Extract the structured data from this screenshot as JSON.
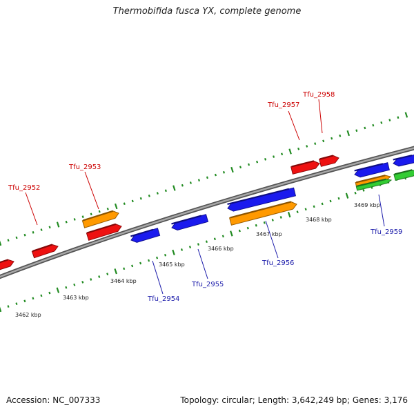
{
  "title": "Thermobifida fusca YX, complete genome",
  "footer": {
    "accession": "Accession: NC_007333",
    "summary": "Topology: circular; Length: 3,642,249 bp; Genes: 3,176"
  },
  "colors": {
    "backbone": "#808080",
    "forward_label": "#cc0000",
    "reverse_label": "#1a1aaa",
    "tick": "#228b22",
    "cds_red": "#ee1111",
    "cds_blue": "#1a1aee",
    "cds_orange": "#ff9900",
    "cds_green": "#33cc33"
  },
  "scale_labels": [
    "3462 kbp",
    "3463 kbp",
    "3464 kbp",
    "3465 kbp",
    "3466 kbp",
    "3467 kbp",
    "3468 kbp",
    "3469 kbp"
  ],
  "gene_labels": [
    {
      "name": "Tfu_2952",
      "strand": "forward"
    },
    {
      "name": "Tfu_2953",
      "strand": "forward"
    },
    {
      "name": "Tfu_2954",
      "strand": "reverse"
    },
    {
      "name": "Tfu_2955",
      "strand": "reverse"
    },
    {
      "name": "Tfu_2956",
      "strand": "reverse"
    },
    {
      "name": "Tfu_2957",
      "strand": "forward"
    },
    {
      "name": "Tfu_2958",
      "strand": "forward"
    },
    {
      "name": "Tfu_2959",
      "strand": "reverse"
    }
  ]
}
